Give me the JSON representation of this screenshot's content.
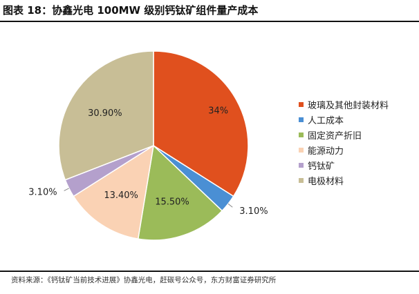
{
  "title": "图表 18：协鑫光电 100MW 级别钙钛矿组件量产成本",
  "source": "资料来源：《钙钛矿当前技术进展》协鑫光电，赶碳号公众号，东方财富证券研究所",
  "chart_data": {
    "type": "pie",
    "title": "",
    "legend_position": "right",
    "slices": [
      {
        "label": "玻璃及其他封装材料",
        "value": 34.0,
        "display": "34%",
        "color": "#E0501E"
      },
      {
        "label": "人工成本",
        "value": 3.1,
        "display": "3.10%",
        "color": "#4A8FD4"
      },
      {
        "label": "固定资产折旧",
        "value": 15.5,
        "display": "15.50%",
        "color": "#9BBB59"
      },
      {
        "label": "能源动力",
        "value": 13.4,
        "display": "13.40%",
        "color": "#FAD2B4"
      },
      {
        "label": "钙钛矿",
        "value": 3.1,
        "display": "3.10%",
        "color": "#B4A0CC"
      },
      {
        "label": "电极材料",
        "value": 30.9,
        "display": "30.90%",
        "color": "#C8BE96"
      }
    ]
  }
}
